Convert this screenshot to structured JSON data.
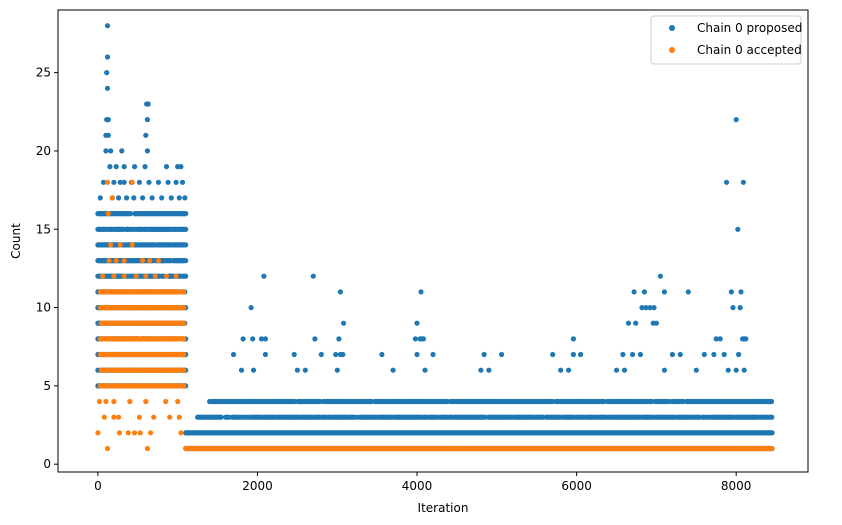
{
  "chart_data": {
    "type": "scatter",
    "title": "",
    "xlabel": "Iteration",
    "ylabel": "Count",
    "xlim": [
      -500,
      8900
    ],
    "ylim": [
      -0.5,
      29
    ],
    "x_ticks": [
      0,
      2000,
      4000,
      6000,
      8000
    ],
    "y_ticks": [
      0,
      5,
      10,
      15,
      20,
      25
    ],
    "grid": false,
    "legend_position": "top-right",
    "x_range": [
      0,
      8450
    ],
    "series": [
      {
        "name": "Chain 0 proposed",
        "color": "#1f77b4",
        "segments": [
          {
            "x_from": 0,
            "x_to": 1100,
            "levels": [
              5,
              6,
              7,
              8,
              9,
              10,
              11,
              12,
              13,
              14,
              15,
              16
            ]
          },
          {
            "x_from": 1100,
            "x_to": 8450,
            "levels": [
              1,
              2
            ]
          },
          {
            "x_from": 1250,
            "x_to": 8450,
            "levels": [
              3
            ]
          },
          {
            "x_from": 1400,
            "x_to": 8450,
            "levels": [
              4
            ]
          }
        ],
        "points": [
          {
            "x": 120,
            "y": 28
          },
          {
            "x": 120,
            "y": 26
          },
          {
            "x": 110,
            "y": 25
          },
          {
            "x": 120,
            "y": 24
          },
          {
            "x": 110,
            "y": 22
          },
          {
            "x": 130,
            "y": 22
          },
          {
            "x": 100,
            "y": 21
          },
          {
            "x": 130,
            "y": 21
          },
          {
            "x": 100,
            "y": 20
          },
          {
            "x": 160,
            "y": 20
          },
          {
            "x": 300,
            "y": 20
          },
          {
            "x": 620,
            "y": 20
          },
          {
            "x": 610,
            "y": 23
          },
          {
            "x": 630,
            "y": 23
          },
          {
            "x": 620,
            "y": 22
          },
          {
            "x": 600,
            "y": 21
          },
          {
            "x": 150,
            "y": 19
          },
          {
            "x": 230,
            "y": 19
          },
          {
            "x": 330,
            "y": 19
          },
          {
            "x": 460,
            "y": 19
          },
          {
            "x": 590,
            "y": 19
          },
          {
            "x": 860,
            "y": 19
          },
          {
            "x": 1000,
            "y": 19
          },
          {
            "x": 1040,
            "y": 19
          },
          {
            "x": 70,
            "y": 18
          },
          {
            "x": 200,
            "y": 18
          },
          {
            "x": 280,
            "y": 18
          },
          {
            "x": 330,
            "y": 18
          },
          {
            "x": 420,
            "y": 18
          },
          {
            "x": 520,
            "y": 18
          },
          {
            "x": 640,
            "y": 18
          },
          {
            "x": 760,
            "y": 18
          },
          {
            "x": 880,
            "y": 18
          },
          {
            "x": 980,
            "y": 18
          },
          {
            "x": 1060,
            "y": 18
          },
          {
            "x": 30,
            "y": 17
          },
          {
            "x": 180,
            "y": 17
          },
          {
            "x": 260,
            "y": 17
          },
          {
            "x": 360,
            "y": 17
          },
          {
            "x": 450,
            "y": 17
          },
          {
            "x": 560,
            "y": 17
          },
          {
            "x": 680,
            "y": 17
          },
          {
            "x": 800,
            "y": 17
          },
          {
            "x": 920,
            "y": 17
          },
          {
            "x": 1020,
            "y": 17
          },
          {
            "x": 1090,
            "y": 17
          },
          {
            "x": 2080,
            "y": 12
          },
          {
            "x": 2700,
            "y": 12
          },
          {
            "x": 3040,
            "y": 11
          },
          {
            "x": 4050,
            "y": 11
          },
          {
            "x": 1920,
            "y": 10
          },
          {
            "x": 1820,
            "y": 8
          },
          {
            "x": 1940,
            "y": 8
          },
          {
            "x": 2050,
            "y": 8
          },
          {
            "x": 2100,
            "y": 8
          },
          {
            "x": 2720,
            "y": 8
          },
          {
            "x": 3020,
            "y": 8
          },
          {
            "x": 3980,
            "y": 8
          },
          {
            "x": 4040,
            "y": 8
          },
          {
            "x": 4060,
            "y": 8
          },
          {
            "x": 4080,
            "y": 8
          },
          {
            "x": 3080,
            "y": 9
          },
          {
            "x": 4000,
            "y": 9
          },
          {
            "x": 1700,
            "y": 7
          },
          {
            "x": 2100,
            "y": 7
          },
          {
            "x": 2460,
            "y": 7
          },
          {
            "x": 2800,
            "y": 7
          },
          {
            "x": 2980,
            "y": 7
          },
          {
            "x": 3040,
            "y": 7
          },
          {
            "x": 3070,
            "y": 7
          },
          {
            "x": 3560,
            "y": 7
          },
          {
            "x": 4000,
            "y": 7
          },
          {
            "x": 4200,
            "y": 7
          },
          {
            "x": 4840,
            "y": 7
          },
          {
            "x": 5060,
            "y": 7
          },
          {
            "x": 5960,
            "y": 8
          },
          {
            "x": 5960,
            "y": 7
          },
          {
            "x": 6050,
            "y": 7
          },
          {
            "x": 6580,
            "y": 7
          },
          {
            "x": 5700,
            "y": 7
          },
          {
            "x": 6720,
            "y": 11
          },
          {
            "x": 6850,
            "y": 11
          },
          {
            "x": 7050,
            "y": 12
          },
          {
            "x": 7100,
            "y": 11
          },
          {
            "x": 7400,
            "y": 11
          },
          {
            "x": 6650,
            "y": 9
          },
          {
            "x": 6820,
            "y": 10
          },
          {
            "x": 6870,
            "y": 10
          },
          {
            "x": 6920,
            "y": 10
          },
          {
            "x": 6970,
            "y": 10
          },
          {
            "x": 6740,
            "y": 9
          },
          {
            "x": 6960,
            "y": 9
          },
          {
            "x": 7000,
            "y": 9
          },
          {
            "x": 7600,
            "y": 7
          },
          {
            "x": 7750,
            "y": 8
          },
          {
            "x": 7800,
            "y": 8
          },
          {
            "x": 7880,
            "y": 18
          },
          {
            "x": 7940,
            "y": 11
          },
          {
            "x": 8000,
            "y": 22
          },
          {
            "x": 8020,
            "y": 15
          },
          {
            "x": 8060,
            "y": 11
          },
          {
            "x": 8090,
            "y": 18
          },
          {
            "x": 7960,
            "y": 10
          },
          {
            "x": 8050,
            "y": 10
          },
          {
            "x": 8080,
            "y": 8
          },
          {
            "x": 8100,
            "y": 8
          },
          {
            "x": 8120,
            "y": 8
          },
          {
            "x": 8030,
            "y": 7
          },
          {
            "x": 7720,
            "y": 7
          },
          {
            "x": 7850,
            "y": 7
          },
          {
            "x": 6700,
            "y": 7
          },
          {
            "x": 6800,
            "y": 7
          },
          {
            "x": 7200,
            "y": 7
          },
          {
            "x": 7300,
            "y": 7
          },
          {
            "x": 8420,
            "y": 4
          },
          {
            "x": 3700,
            "y": 6
          },
          {
            "x": 4100,
            "y": 6
          },
          {
            "x": 5900,
            "y": 6
          },
          {
            "x": 5800,
            "y": 6
          },
          {
            "x": 6500,
            "y": 6
          },
          {
            "x": 6600,
            "y": 6
          },
          {
            "x": 4800,
            "y": 6
          },
          {
            "x": 4900,
            "y": 6
          },
          {
            "x": 2500,
            "y": 6
          },
          {
            "x": 1800,
            "y": 6
          },
          {
            "x": 1950,
            "y": 6
          },
          {
            "x": 2600,
            "y": 6
          },
          {
            "x": 3000,
            "y": 6
          },
          {
            "x": 7100,
            "y": 6
          },
          {
            "x": 7500,
            "y": 6
          },
          {
            "x": 7900,
            "y": 6
          },
          {
            "x": 8000,
            "y": 6
          },
          {
            "x": 8100,
            "y": 6
          }
        ]
      },
      {
        "name": "Chain 0 accepted",
        "color": "#ff7f0e",
        "segments": [
          {
            "x_from": 30,
            "x_to": 1080,
            "levels": [
              5,
              6,
              7,
              8,
              9,
              10,
              11
            ]
          },
          {
            "x_from": 1100,
            "x_to": 8450,
            "levels": [
              1
            ]
          }
        ],
        "points": [
          {
            "x": 120,
            "y": 18
          },
          {
            "x": 180,
            "y": 17
          },
          {
            "x": 430,
            "y": 18
          },
          {
            "x": 130,
            "y": 16
          },
          {
            "x": 160,
            "y": 14
          },
          {
            "x": 280,
            "y": 14
          },
          {
            "x": 430,
            "y": 14
          },
          {
            "x": 140,
            "y": 13
          },
          {
            "x": 230,
            "y": 13
          },
          {
            "x": 330,
            "y": 13
          },
          {
            "x": 560,
            "y": 13
          },
          {
            "x": 650,
            "y": 13
          },
          {
            "x": 760,
            "y": 13
          },
          {
            "x": 60,
            "y": 12
          },
          {
            "x": 200,
            "y": 12
          },
          {
            "x": 330,
            "y": 12
          },
          {
            "x": 480,
            "y": 12
          },
          {
            "x": 600,
            "y": 12
          },
          {
            "x": 720,
            "y": 12
          },
          {
            "x": 860,
            "y": 12
          },
          {
            "x": 980,
            "y": 12
          },
          {
            "x": 20,
            "y": 4
          },
          {
            "x": 100,
            "y": 4
          },
          {
            "x": 200,
            "y": 4
          },
          {
            "x": 400,
            "y": 4
          },
          {
            "x": 600,
            "y": 4
          },
          {
            "x": 850,
            "y": 4
          },
          {
            "x": 1000,
            "y": 4
          },
          {
            "x": 80,
            "y": 3
          },
          {
            "x": 200,
            "y": 3
          },
          {
            "x": 260,
            "y": 3
          },
          {
            "x": 520,
            "y": 3
          },
          {
            "x": 700,
            "y": 3
          },
          {
            "x": 900,
            "y": 3
          },
          {
            "x": 1020,
            "y": 3
          },
          {
            "x": 0,
            "y": 2
          },
          {
            "x": 270,
            "y": 2
          },
          {
            "x": 380,
            "y": 2
          },
          {
            "x": 460,
            "y": 2
          },
          {
            "x": 530,
            "y": 2
          },
          {
            "x": 660,
            "y": 2
          },
          {
            "x": 1040,
            "y": 2
          },
          {
            "x": 120,
            "y": 1
          },
          {
            "x": 620,
            "y": 1
          }
        ]
      }
    ]
  }
}
